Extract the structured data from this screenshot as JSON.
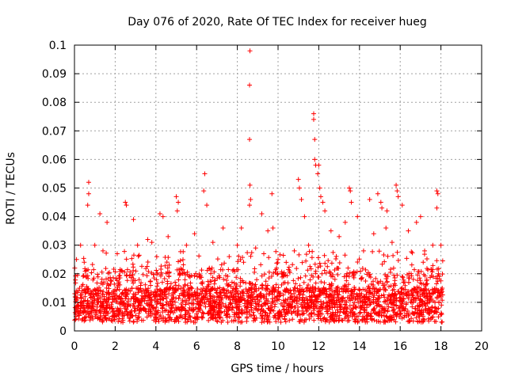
{
  "chart_data": {
    "type": "scatter",
    "title": "Day 076 of 2020, Rate Of TEC Index for receiver hueg",
    "xlabel": "GPS time / hours",
    "ylabel": "ROTI / TECUs",
    "xlim": [
      0,
      20
    ],
    "ylim": [
      0,
      0.1
    ],
    "xticks": [
      "0",
      "2",
      "4",
      "6",
      "8",
      "10",
      "12",
      "14",
      "16",
      "18",
      "20"
    ],
    "yticks": [
      "0",
      "0.01",
      "0.02",
      "0.03",
      "0.04",
      "0.05",
      "0.06",
      "0.07",
      "0.08",
      "0.09",
      "0.1"
    ],
    "grid": true,
    "marker": "plus",
    "color": "#ff0000",
    "data_range_x": [
      0,
      18.1
    ],
    "series": [
      {
        "points": [
          [
            0.7,
            0.052
          ],
          [
            0.7,
            0.048
          ],
          [
            0.65,
            0.044
          ],
          [
            1.25,
            0.041
          ],
          [
            1.6,
            0.038
          ],
          [
            2.5,
            0.045
          ],
          [
            2.55,
            0.044
          ],
          [
            2.9,
            0.039
          ],
          [
            3.6,
            0.032
          ],
          [
            4.2,
            0.041
          ],
          [
            4.35,
            0.04
          ],
          [
            5.0,
            0.047
          ],
          [
            5.1,
            0.045
          ],
          [
            5.05,
            0.042
          ],
          [
            6.4,
            0.055
          ],
          [
            6.35,
            0.049
          ],
          [
            6.5,
            0.044
          ],
          [
            7.3,
            0.036
          ],
          [
            8.2,
            0.036
          ],
          [
            8.62,
            0.098
          ],
          [
            8.6,
            0.086
          ],
          [
            8.6,
            0.067
          ],
          [
            8.62,
            0.051
          ],
          [
            8.65,
            0.046
          ],
          [
            8.6,
            0.044
          ],
          [
            9.2,
            0.041
          ],
          [
            9.5,
            0.035
          ],
          [
            9.7,
            0.048
          ],
          [
            9.75,
            0.036
          ],
          [
            11.0,
            0.053
          ],
          [
            11.05,
            0.05
          ],
          [
            11.15,
            0.046
          ],
          [
            11.3,
            0.04
          ],
          [
            11.75,
            0.076
          ],
          [
            11.75,
            0.074
          ],
          [
            11.8,
            0.067
          ],
          [
            11.8,
            0.06
          ],
          [
            11.85,
            0.058
          ],
          [
            12.0,
            0.058
          ],
          [
            11.95,
            0.055
          ],
          [
            12.05,
            0.05
          ],
          [
            12.1,
            0.047
          ],
          [
            12.2,
            0.045
          ],
          [
            12.3,
            0.042
          ],
          [
            13.5,
            0.05
          ],
          [
            13.55,
            0.049
          ],
          [
            13.6,
            0.045
          ],
          [
            13.9,
            0.04
          ],
          [
            14.5,
            0.046
          ],
          [
            14.9,
            0.048
          ],
          [
            15.05,
            0.045
          ],
          [
            15.1,
            0.043
          ],
          [
            15.35,
            0.042
          ],
          [
            15.8,
            0.051
          ],
          [
            15.85,
            0.049
          ],
          [
            15.9,
            0.047
          ],
          [
            16.1,
            0.044
          ],
          [
            16.8,
            0.038
          ],
          [
            17.0,
            0.04
          ],
          [
            17.8,
            0.049
          ],
          [
            17.85,
            0.048
          ],
          [
            17.8,
            0.043
          ],
          [
            18.0,
            0.03
          ],
          [
            0.1,
            0.025
          ],
          [
            0.3,
            0.03
          ],
          [
            1.0,
            0.03
          ],
          [
            1.4,
            0.028
          ],
          [
            2.1,
            0.027
          ],
          [
            3.1,
            0.03
          ],
          [
            3.8,
            0.031
          ],
          [
            4.6,
            0.033
          ],
          [
            5.5,
            0.03
          ],
          [
            5.9,
            0.034
          ],
          [
            6.8,
            0.031
          ],
          [
            7.6,
            0.026
          ],
          [
            8.0,
            0.03
          ],
          [
            8.9,
            0.029
          ],
          [
            9.3,
            0.027
          ],
          [
            10.0,
            0.025
          ],
          [
            10.4,
            0.024
          ],
          [
            10.8,
            0.028
          ],
          [
            11.5,
            0.03
          ],
          [
            12.6,
            0.035
          ],
          [
            13.0,
            0.033
          ],
          [
            13.3,
            0.038
          ],
          [
            14.2,
            0.028
          ],
          [
            14.7,
            0.034
          ],
          [
            15.3,
            0.036
          ],
          [
            15.6,
            0.031
          ],
          [
            16.4,
            0.035
          ],
          [
            17.2,
            0.028
          ],
          [
            17.6,
            0.03
          ]
        ]
      }
    ]
  }
}
